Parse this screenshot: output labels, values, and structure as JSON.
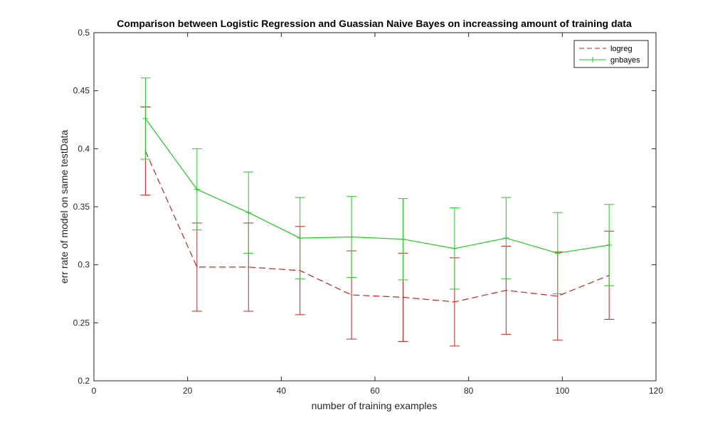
{
  "chart_data": {
    "type": "line",
    "title": "Comparison between Logistic Regression and Guassian Naive Bayes on increassing amount of training data",
    "xlabel": "number of training examples",
    "ylabel": "err rate of model on same testData",
    "xlim": [
      0,
      120
    ],
    "ylim": [
      0.2,
      0.5
    ],
    "xticks": [
      "0",
      "20",
      "40",
      "60",
      "80",
      "100",
      "120"
    ],
    "yticks": [
      "0.2",
      "0.25",
      "0.3",
      "0.35",
      "0.4",
      "0.45",
      "0.5"
    ],
    "grid": false,
    "legend_position": "top-right",
    "x": [
      11,
      22,
      33,
      44,
      55,
      66,
      77,
      88,
      99,
      110
    ],
    "series": [
      {
        "name": "logreg",
        "color": "#cc2222",
        "line_style": "dashed",
        "marker": "none",
        "values": [
          0.398,
          0.298,
          0.298,
          0.295,
          0.274,
          0.272,
          0.268,
          0.278,
          0.273,
          0.291
        ],
        "error": [
          0.038,
          0.038,
          0.038,
          0.038,
          0.038,
          0.038,
          0.038,
          0.038,
          0.038,
          0.038
        ]
      },
      {
        "name": "gnbayes",
        "color": "#22cc22",
        "line_style": "solid",
        "marker": "plus",
        "values": [
          0.426,
          0.365,
          0.345,
          0.323,
          0.324,
          0.322,
          0.314,
          0.323,
          0.31,
          0.317
        ],
        "error": [
          0.035,
          0.035,
          0.035,
          0.035,
          0.035,
          0.035,
          0.035,
          0.035,
          0.035,
          0.035
        ]
      }
    ]
  }
}
